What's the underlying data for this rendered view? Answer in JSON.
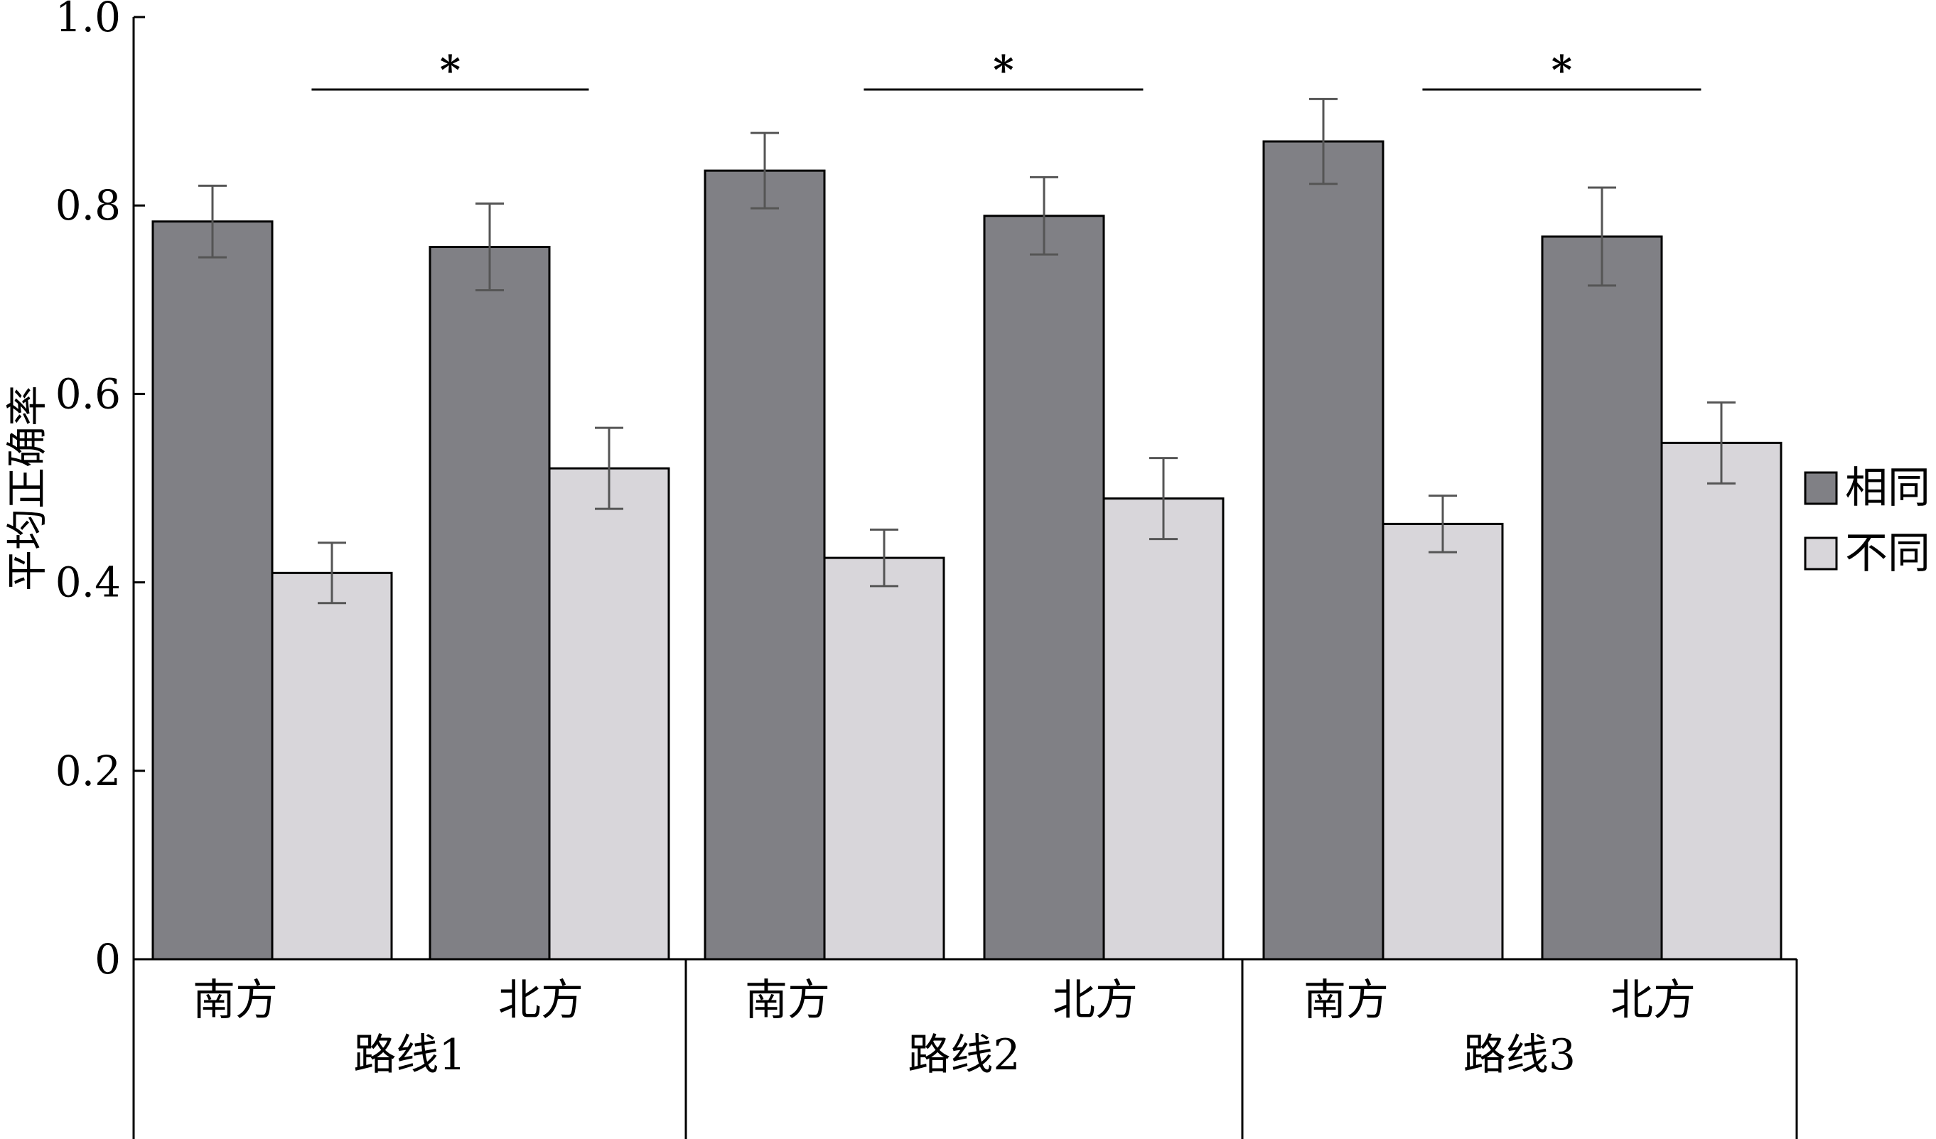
{
  "chart_data": {
    "type": "bar",
    "ylabel": "平均正确率",
    "ylim": [
      0,
      1.0
    ],
    "yticks": [
      "0",
      "0.2",
      "0.4",
      "0.6",
      "0.8",
      "1.0"
    ],
    "grid": false,
    "legend_position": "right",
    "groups": [
      {
        "label": "路线1",
        "categories": [
          "南方",
          "北方"
        ],
        "significance": "*"
      },
      {
        "label": "路线2",
        "categories": [
          "南方",
          "北方"
        ],
        "significance": "*"
      },
      {
        "label": "路线3",
        "categories": [
          "南方",
          "北方"
        ],
        "significance": "*"
      }
    ],
    "series": [
      {
        "name": "相同",
        "color": "#808085",
        "values": [
          0.783,
          0.756,
          0.837,
          0.789,
          0.868,
          0.767
        ],
        "errors": [
          0.038,
          0.046,
          0.04,
          0.041,
          0.045,
          0.052
        ]
      },
      {
        "name": "不同",
        "color": "#d8d6da",
        "values": [
          0.41,
          0.521,
          0.426,
          0.489,
          0.462,
          0.548
        ],
        "errors": [
          0.032,
          0.043,
          0.03,
          0.043,
          0.03,
          0.043
        ]
      }
    ]
  }
}
